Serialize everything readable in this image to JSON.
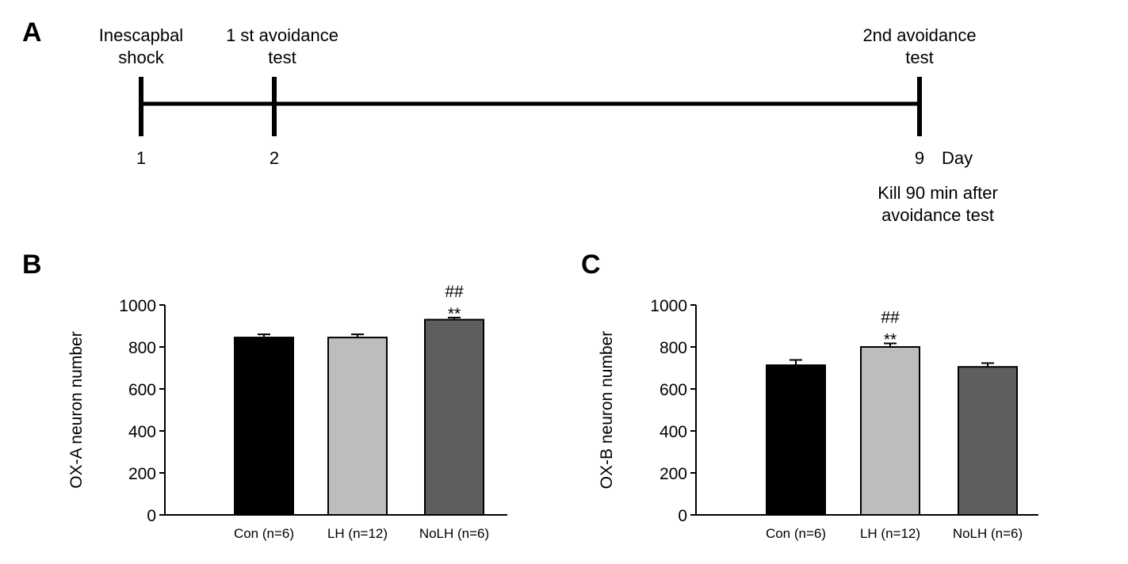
{
  "panels": {
    "a": "A",
    "b": "B",
    "c": "C"
  },
  "timeline": {
    "events": [
      {
        "label_lines": [
          "Inescapbal",
          "shock"
        ],
        "day": "1"
      },
      {
        "label_lines": [
          "1 st avoidance",
          "test"
        ],
        "day": "2"
      },
      {
        "label_lines": [
          "2nd avoidance",
          "test"
        ],
        "day": "9"
      }
    ],
    "unit": "Day",
    "note_lines": [
      "Kill 90 min after",
      "avoidance test"
    ]
  },
  "colors": {
    "con": "#000000",
    "lh": "#bdbdbd",
    "nolh": "#5e5e5e",
    "axis": "#000000"
  },
  "chart_data": [
    {
      "type": "bar",
      "panel": "B",
      "title": "",
      "xlabel": "",
      "ylabel": "OX-A  neuron number",
      "ylim": [
        0,
        1000
      ],
      "yticks": [
        0,
        200,
        400,
        600,
        800,
        1000
      ],
      "categories": [
        "Con (n=6)",
        "LH (n=12)",
        "NoLH (n=6)"
      ],
      "values": [
        845,
        845,
        930
      ],
      "errors": [
        15,
        15,
        10
      ],
      "annotations": [
        {
          "category_index": 2,
          "lines": [
            "##",
            "**"
          ]
        }
      ]
    },
    {
      "type": "bar",
      "panel": "C",
      "title": "",
      "xlabel": "",
      "ylabel": "OX-B  neuron number",
      "ylim": [
        0,
        1000
      ],
      "yticks": [
        0,
        200,
        400,
        600,
        800,
        1000
      ],
      "categories": [
        "Con (n=6)",
        "LH (n=12)",
        "NoLH (n=6)"
      ],
      "values": [
        713,
        800,
        705
      ],
      "errors": [
        25,
        17,
        18
      ],
      "annotations": [
        {
          "category_index": 1,
          "lines": [
            "##",
            "**"
          ]
        }
      ]
    }
  ]
}
